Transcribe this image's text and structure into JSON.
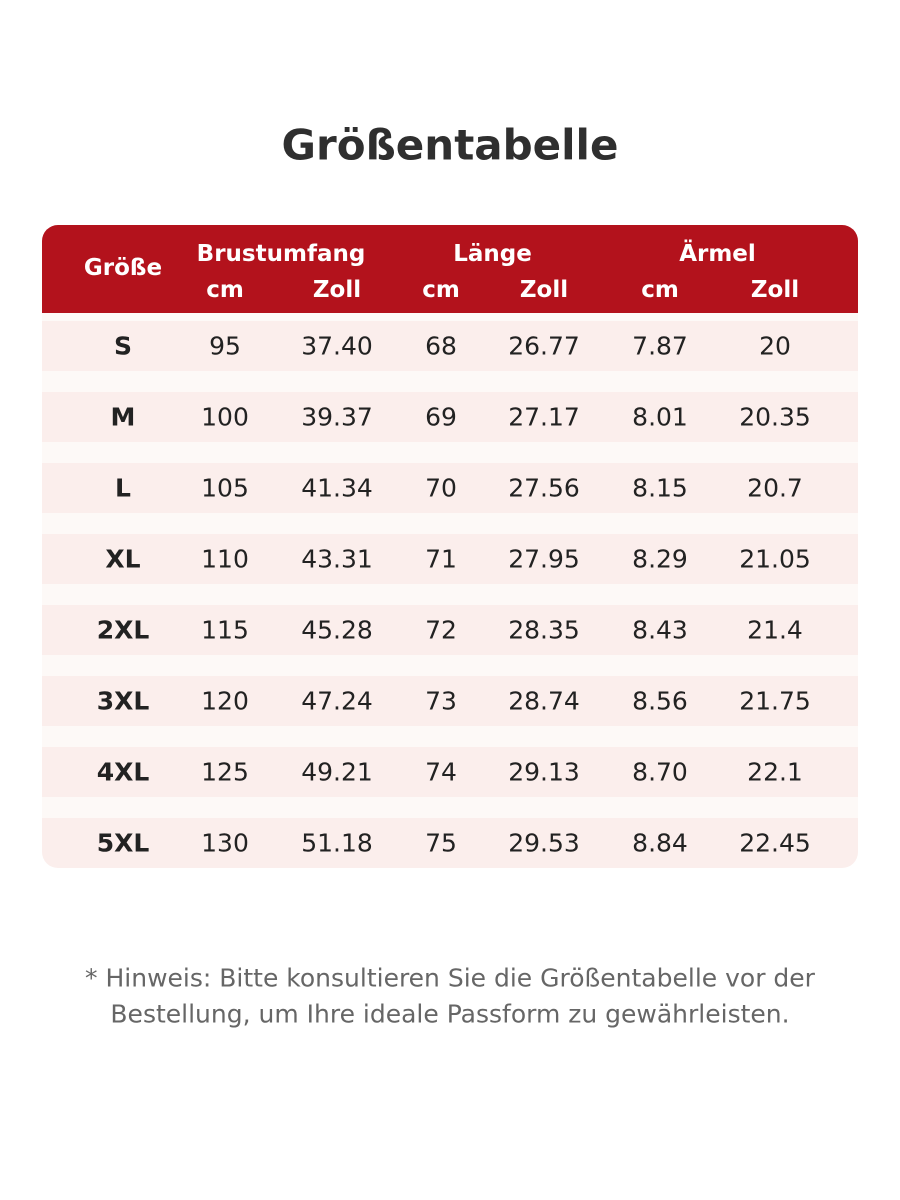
{
  "header": {
    "title": "Größentabelle"
  },
  "table": {
    "size_label": "Größe",
    "groups": [
      {
        "label": "Brustumfang",
        "units": [
          "cm",
          "Zoll"
        ]
      },
      {
        "label": "Länge",
        "units": [
          "cm",
          "Zoll"
        ]
      },
      {
        "label": "Ärmel",
        "units": [
          "cm",
          "Zoll"
        ]
      }
    ],
    "rows": [
      [
        "S",
        "95",
        "37.40",
        "68",
        "26.77",
        "7.87",
        "20"
      ],
      [
        "M",
        "100",
        "39.37",
        "69",
        "27.17",
        "8.01",
        "20.35"
      ],
      [
        "L",
        "105",
        "41.34",
        "70",
        "27.56",
        "8.15",
        "20.7"
      ],
      [
        "XL",
        "110",
        "43.31",
        "71",
        "27.95",
        "8.29",
        "21.05"
      ],
      [
        "2XL",
        "115",
        "45.28",
        "72",
        "28.35",
        "8.43",
        "21.4"
      ],
      [
        "3XL",
        "120",
        "47.24",
        "73",
        "28.74",
        "8.56",
        "21.75"
      ],
      [
        "4XL",
        "125",
        "49.21",
        "74",
        "29.13",
        "8.70",
        "22.1"
      ],
      [
        "5XL",
        "130",
        "51.18",
        "75",
        "29.53",
        "8.84",
        "22.45"
      ]
    ]
  },
  "note": {
    "lines": [
      "* Hinweis: Bitte konsultieren Sie die Größentabelle vor der",
      "Bestellung, um Ihre ideale Passform zu gewährleisten."
    ]
  }
}
